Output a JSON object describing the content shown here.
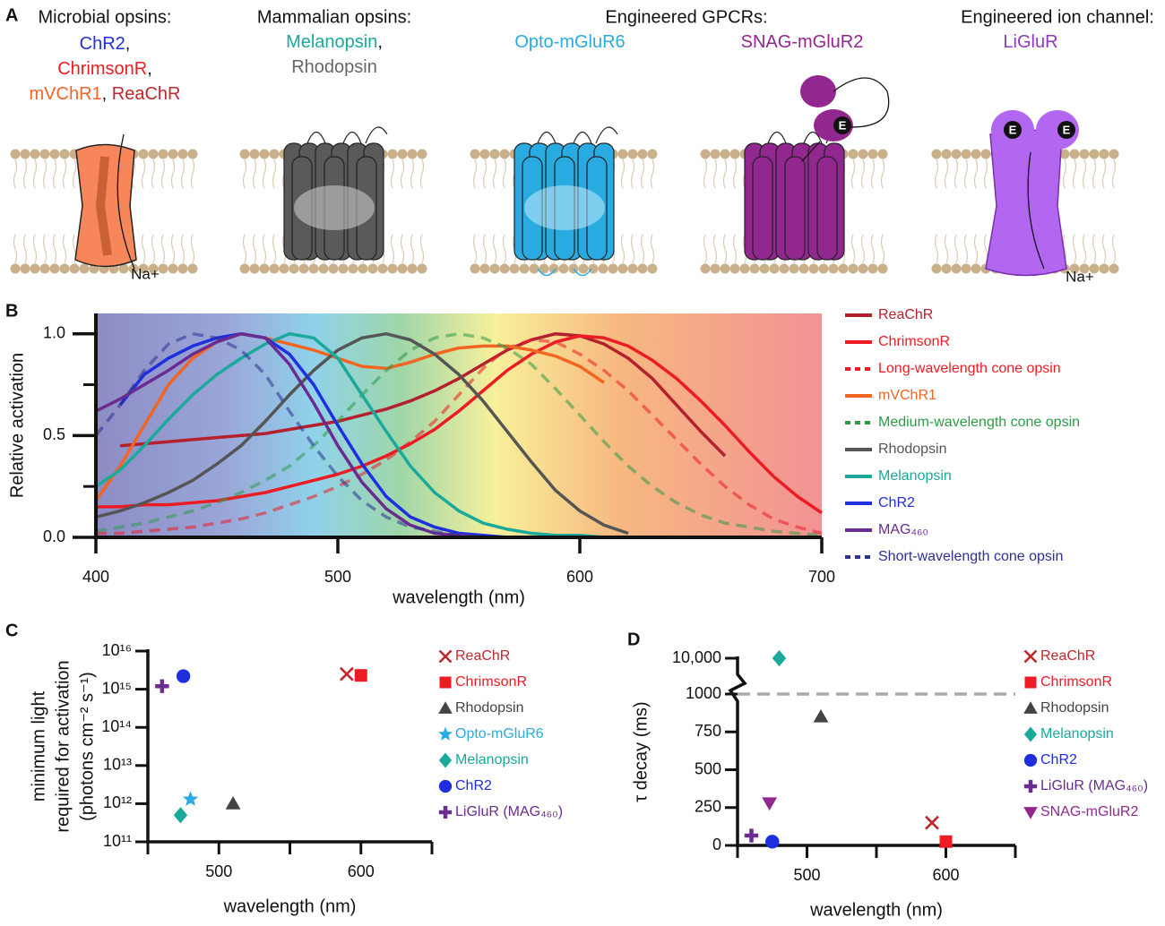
{
  "diagram": {
    "panel": "A",
    "headings": [
      "Microbial opsins:",
      "Mammalian opsins:",
      "Engineered GPCRs:",
      "Engineered ion channel:"
    ],
    "labels": [
      [
        {
          "text": "ChR2",
          "color": "#1f2fe0"
        },
        {
          "text": ",",
          "color": "#111111"
        }
      ],
      [
        {
          "text": "ChrimsonR",
          "color": "#ed1c24"
        },
        {
          "text": ",",
          "color": "#111111"
        }
      ],
      [
        {
          "text": "mVChR1",
          "color": "#f26522"
        },
        {
          "text": ", ",
          "color": "#111111"
        },
        {
          "text": "ReaChR",
          "color": "#c1272d"
        }
      ],
      [
        {
          "text": "Melanopsin",
          "color": "#1aa99a"
        },
        {
          "text": ",",
          "color": "#111111"
        }
      ],
      [
        {
          "text": "Rhodopsin",
          "color": "#666666"
        }
      ],
      [
        {
          "text": "Opto-mGluR6",
          "color": "#29abe2"
        }
      ],
      [
        {
          "text": "SNAG-mGluR2",
          "color": "#92278f"
        }
      ],
      [
        {
          "text": "LiGluR",
          "color": "#8e3bbf"
        }
      ]
    ],
    "ions": [
      "Na+",
      "Na+"
    ],
    "ligand": "E"
  },
  "chart_data": [
    {
      "type": "line",
      "panel": "B",
      "xlabel": "wavelength (nm)",
      "ylabel": "Relative activation",
      "xlim": [
        400,
        700
      ],
      "xticks": [
        400,
        500,
        600,
        700
      ],
      "ylim": [
        0,
        1.1
      ],
      "yticks": [
        {
          "value": 0,
          "label": "0.0"
        },
        0.5,
        {
          "value": 1,
          "label": "1.0"
        }
      ],
      "yminorticks": [
        0.25,
        0.75
      ],
      "x": [
        400,
        410,
        420,
        430,
        440,
        450,
        460,
        470,
        480,
        490,
        500,
        510,
        520,
        530,
        540,
        550,
        560,
        570,
        580,
        590,
        600,
        610,
        620,
        630,
        640,
        650,
        660,
        670,
        680,
        690,
        700
      ],
      "series": [
        {
          "name": "ReaChR",
          "color": "#b5202e",
          "dashed": false,
          "values": [
            null,
            0.45,
            0.46,
            0.47,
            0.48,
            0.49,
            0.5,
            0.51,
            0.53,
            0.55,
            0.57,
            0.6,
            0.63,
            0.67,
            0.72,
            0.78,
            0.85,
            0.92,
            0.97,
            1.0,
            0.99,
            0.95,
            0.88,
            0.78,
            0.65,
            0.52,
            0.4,
            null,
            null,
            null,
            null
          ]
        },
        {
          "name": "ChrimsonR",
          "color": "#ed1c24",
          "dashed": false,
          "values": [
            0.15,
            0.15,
            0.16,
            0.16,
            0.17,
            0.18,
            0.2,
            0.22,
            0.25,
            0.28,
            0.31,
            0.35,
            0.4,
            0.46,
            0.53,
            0.62,
            0.72,
            0.82,
            0.9,
            0.96,
            0.99,
            0.98,
            0.94,
            0.87,
            0.78,
            0.67,
            0.55,
            0.42,
            0.3,
            0.2,
            0.12
          ]
        },
        {
          "name": "Long-wavelength cone opsin",
          "color": "#ed1c24",
          "dashed": true,
          "values": [
            0.02,
            0.02,
            0.03,
            0.04,
            0.05,
            0.07,
            0.09,
            0.12,
            0.16,
            0.2,
            0.25,
            0.31,
            0.38,
            0.47,
            0.57,
            0.7,
            0.83,
            0.93,
            0.97,
            0.96,
            0.9,
            0.82,
            0.72,
            0.6,
            0.48,
            0.36,
            0.25,
            0.16,
            0.09,
            0.05,
            0.02
          ]
        },
        {
          "name": "mVChR1",
          "color": "#f26522",
          "dashed": false,
          "values": [
            0.18,
            0.35,
            0.55,
            0.75,
            0.88,
            0.96,
            1.0,
            0.98,
            0.95,
            0.92,
            0.88,
            0.84,
            0.83,
            0.86,
            0.9,
            0.93,
            0.94,
            0.94,
            0.92,
            0.89,
            0.84,
            0.76,
            null,
            null,
            null,
            null,
            null,
            null,
            null,
            null,
            null
          ]
        },
        {
          "name": "Medium-wavelength cone opsin",
          "color": "#2e9b48",
          "dashed": true,
          "values": [
            0.03,
            0.05,
            0.07,
            0.1,
            0.13,
            0.17,
            0.22,
            0.28,
            0.35,
            0.45,
            0.57,
            0.7,
            0.82,
            0.92,
            0.98,
            1.0,
            0.98,
            0.93,
            0.85,
            0.73,
            0.6,
            0.47,
            0.35,
            0.25,
            0.17,
            0.11,
            0.07,
            0.05,
            0.03,
            0.02,
            0.01
          ]
        },
        {
          "name": "Rhodopsin",
          "color": "#555555",
          "dashed": false,
          "values": [
            0.1,
            0.13,
            0.17,
            0.22,
            0.28,
            0.36,
            0.45,
            0.57,
            0.7,
            0.82,
            0.92,
            0.98,
            1.0,
            0.97,
            0.9,
            0.8,
            0.67,
            0.52,
            0.37,
            0.23,
            0.13,
            0.06,
            0.02,
            null,
            null,
            null,
            null,
            null,
            null,
            null,
            null
          ]
        },
        {
          "name": "Melanopsin",
          "color": "#1aa99a",
          "dashed": false,
          "values": [
            0.25,
            0.33,
            0.45,
            0.58,
            0.7,
            0.8,
            0.88,
            0.95,
            1.0,
            0.98,
            0.88,
            0.7,
            0.52,
            0.35,
            0.22,
            0.13,
            0.07,
            0.04,
            0.02,
            0.01,
            0.01,
            0,
            null,
            null,
            null,
            null,
            null,
            null,
            null,
            null,
            null
          ]
        },
        {
          "name": "ChR2",
          "color": "#1f2fe0",
          "dashed": false,
          "values": [
            null,
            0.65,
            0.8,
            0.88,
            0.94,
            0.98,
            1.0,
            0.98,
            0.9,
            0.75,
            0.55,
            0.36,
            0.2,
            0.1,
            0.05,
            0.02,
            0.01,
            0,
            0,
            0,
            null,
            null,
            null,
            null,
            null,
            null,
            null,
            null,
            null,
            null,
            null
          ]
        },
        {
          "name": "MAG₄₆₀",
          "color": "#6a2c91",
          "dashed": false,
          "values": [
            0.62,
            0.68,
            0.75,
            0.82,
            0.9,
            0.96,
            1.0,
            0.98,
            0.85,
            0.66,
            0.45,
            0.27,
            0.14,
            0.06,
            0.02,
            0.01,
            0,
            null,
            null,
            null,
            null,
            null,
            null,
            null,
            null,
            null,
            null,
            null,
            null,
            null,
            null
          ]
        },
        {
          "name": "Short-wavelength cone opsin",
          "color": "#2e3192",
          "dashed": true,
          "values": [
            0.5,
            0.65,
            0.82,
            0.95,
            1.0,
            0.98,
            0.92,
            0.8,
            0.62,
            0.45,
            0.3,
            0.18,
            0.1,
            0.05,
            0.03,
            0.01,
            0,
            null,
            null,
            null,
            null,
            null,
            null,
            null,
            null,
            null,
            null,
            null,
            null,
            null,
            null
          ]
        }
      ]
    },
    {
      "type": "scatter",
      "panel": "C",
      "xlabel": "wavelength (nm)",
      "ylabel": [
        "minimum light",
        "required for activation",
        "(photons cm⁻² s⁻¹)"
      ],
      "log_y": true,
      "xlim": [
        450,
        650
      ],
      "xticks": [
        500,
        600
      ],
      "xminorticks": [
        450,
        550,
        650
      ],
      "ylim": [
        100000000000.0,
        1e+16
      ],
      "yticks": [
        {
          "value": 100000000000.0,
          "label": "10¹¹"
        },
        {
          "value": 1000000000000.0,
          "label": "10¹²"
        },
        {
          "value": 10000000000000.0,
          "label": "10¹³"
        },
        {
          "value": 100000000000000.0,
          "label": "10¹⁴"
        },
        {
          "value": 1000000000000000.0,
          "label": "10¹⁵"
        },
        {
          "value": 1e+16,
          "label": "10¹⁶"
        }
      ],
      "series": [
        {
          "name": "ReaChR",
          "color": "#c1272d",
          "marker": "x",
          "x": [
            590
          ],
          "values": [
            2500000000000000.0
          ]
        },
        {
          "name": "ChrimsonR",
          "color": "#ed1c24",
          "marker": "square",
          "x": [
            600
          ],
          "values": [
            2300000000000000.0
          ]
        },
        {
          "name": "Rhodopsin",
          "color": "#444444",
          "marker": "triangle",
          "x": [
            510
          ],
          "values": [
            1000000000000.0
          ]
        },
        {
          "name": "Opto-mGluR6",
          "color": "#29abe2",
          "marker": "star",
          "x": [
            480
          ],
          "values": [
            1300000000000.0
          ]
        },
        {
          "name": "Melanopsin",
          "color": "#1aa99a",
          "marker": "diamond",
          "x": [
            473
          ],
          "values": [
            500000000000.0
          ]
        },
        {
          "name": "ChR2",
          "color": "#1f2fe0",
          "marker": "circle",
          "x": [
            475
          ],
          "values": [
            2200000000000000.0
          ]
        },
        {
          "name": "LiGluR (MAG₄₆₀)",
          "color": "#6a2c91",
          "marker": "plus",
          "x": [
            460
          ],
          "values": [
            1200000000000000.0
          ]
        }
      ]
    },
    {
      "type": "scatter",
      "panel": "D",
      "xlabel": "wavelength (nm)",
      "ylabel": "τ decay (ms)",
      "xlim": [
        450,
        650
      ],
      "xticks": [
        500,
        600
      ],
      "xminorticks": [
        450,
        550,
        650
      ],
      "ylim": [
        0,
        10000
      ],
      "ybreak": 1000,
      "reference_line": 1000,
      "yticks": [
        0,
        250,
        500,
        750,
        1000,
        {
          "value": 10000,
          "label": "10,000"
        }
      ],
      "series": [
        {
          "name": "ReaChR",
          "color": "#c1272d",
          "marker": "x",
          "x": [
            590
          ],
          "values": [
            150
          ]
        },
        {
          "name": "ChrimsonR",
          "color": "#ed1c24",
          "marker": "square",
          "x": [
            600
          ],
          "values": [
            25
          ]
        },
        {
          "name": "Rhodopsin",
          "color": "#444444",
          "marker": "triangle",
          "x": [
            510
          ],
          "values": [
            850
          ]
        },
        {
          "name": "Melanopsin",
          "color": "#1aa99a",
          "marker": "diamond",
          "x": [
            480
          ],
          "values": [
            10000
          ]
        },
        {
          "name": "ChR2",
          "color": "#1f2fe0",
          "marker": "circle",
          "x": [
            475
          ],
          "values": [
            25
          ]
        },
        {
          "name": "LiGluR (MAG₄₆₀)",
          "color": "#6a2c91",
          "marker": "plus",
          "x": [
            460
          ],
          "values": [
            65
          ]
        },
        {
          "name": "SNAG-mGluR2",
          "color": "#92278f",
          "marker": "triangle-down",
          "x": [
            473
          ],
          "values": [
            280
          ]
        }
      ]
    }
  ]
}
